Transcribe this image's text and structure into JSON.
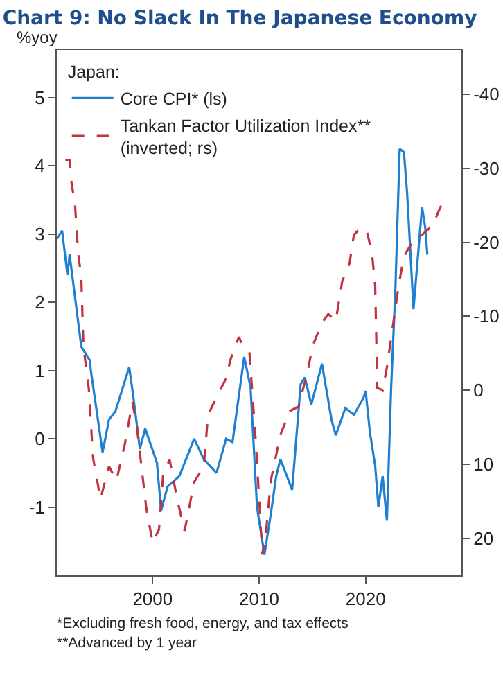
{
  "chart_data": {
    "type": "line",
    "title": "Chart 9: No Slack In The Japanese Economy",
    "ylabel": "%yoy",
    "legend_title": "Japan:",
    "annotations": [
      "*Excluding fresh food, energy, and tax effects",
      "**Advanced by 1 year"
    ],
    "xlim": [
      1991,
      2029
    ],
    "xticks": [
      2000,
      2010,
      2020
    ],
    "ylim": [
      -2.0,
      5.7
    ],
    "yticks": [
      -1,
      0,
      1,
      2,
      3,
      4,
      5
    ],
    "y2lim": [
      25,
      -46
    ],
    "y2ticks": [
      -40,
      -30,
      -20,
      -10,
      0,
      10,
      20
    ],
    "grid": false,
    "legend": "top left",
    "marker": "none",
    "series": [
      {
        "name": "Core CPI* (ls)",
        "color": "#1f7fd0",
        "line_style": "solid",
        "x": [
          1991.0,
          1991.5,
          1992.0,
          1992.2,
          1993.3,
          1994.1,
          1994.2,
          1995.3,
          1995.9,
          1996.5,
          1997.8,
          1998.2,
          1998.8,
          1999.3,
          2000.4,
          2000.8,
          2001.4,
          2002.5,
          2003.9,
          2004.8,
          2006.0,
          2006.9,
          2007.5,
          2008.6,
          2009.2,
          2009.8,
          2010.5,
          2011.1,
          2011.6,
          2012.0,
          2013.1,
          2013.9,
          2014.3,
          2014.9,
          2015.9,
          2016.8,
          2017.2,
          2018.1,
          2018.9,
          2019.8,
          2020.0,
          2020.4,
          2020.9,
          2021.2,
          2021.6,
          2022.0,
          2022.4,
          2022.8,
          2023.2,
          2023.6,
          2023.9,
          2024.5,
          2025.3,
          2025.6,
          2025.8
        ],
        "values": [
          2.93,
          3.05,
          2.4,
          2.7,
          1.35,
          1.15,
          1.0,
          -0.2,
          0.28,
          0.4,
          1.05,
          0.6,
          -0.15,
          0.15,
          -0.35,
          -1.05,
          -0.7,
          -0.55,
          0.0,
          -0.3,
          -0.5,
          0.0,
          -0.05,
          1.2,
          0.75,
          -1.0,
          -1.7,
          -1.1,
          -0.55,
          -0.3,
          -0.75,
          0.8,
          0.9,
          0.5,
          1.1,
          0.28,
          0.05,
          0.45,
          0.35,
          0.6,
          0.7,
          0.1,
          -0.4,
          -1.0,
          -0.55,
          -1.2,
          0.75,
          2.2,
          4.25,
          4.2,
          3.6,
          1.9,
          3.4,
          3.1,
          2.7
        ]
      },
      {
        "name": "Tankan Factor Utilization Index**\n(inverted; rs)",
        "color": "#c0333f",
        "line_style": "dashed",
        "axis": "y2",
        "x": [
          1991.8,
          1992.2,
          1992.4,
          1992.7,
          1993.0,
          1993.3,
          1993.5,
          1994.0,
          1994.4,
          1995.1,
          1995.9,
          1996.6,
          1997.4,
          1998.1,
          1998.5,
          1999.4,
          2000.0,
          2000.6,
          2001.0,
          2001.6,
          2002.3,
          2003.0,
          2003.9,
          2004.8,
          2005.2,
          2006.0,
          2006.9,
          2007.3,
          2008.1,
          2008.6,
          2009.1,
          2009.7,
          2010.3,
          2010.7,
          2011.1,
          2012.0,
          2012.9,
          2013.7,
          2014.6,
          2015.0,
          2015.9,
          2016.5,
          2017.2,
          2017.8,
          2018.5,
          2018.9,
          2019.5,
          2020.1,
          2020.6,
          2020.9,
          2021.1,
          2021.6,
          2022.0,
          2022.6,
          2023.1,
          2023.6,
          2024.5,
          2025.3,
          2026.3,
          2027.1
        ],
        "values": [
          -31.1,
          -31.1,
          -27.8,
          -25.3,
          -18.5,
          -15.3,
          -5.9,
          -0.3,
          9.1,
          14.7,
          10.3,
          12.2,
          7.2,
          1.6,
          4.7,
          15.9,
          20.6,
          18.8,
          11.1,
          9.4,
          14.7,
          19.0,
          12.4,
          10.3,
          3.4,
          0.9,
          -1.6,
          -4.1,
          -7.2,
          -5.6,
          -5.0,
          7.2,
          22.2,
          18.4,
          12.2,
          6.0,
          2.8,
          2.2,
          -2.8,
          -5.9,
          -9.1,
          -10.3,
          -9.4,
          -14.7,
          -17.2,
          -21.0,
          -21.9,
          -21.6,
          -18.5,
          -14.1,
          -0.3,
          0.0,
          -3.1,
          -9.1,
          -14.1,
          -18.1,
          -20.3,
          -21.0,
          -22.3,
          -25.0
        ]
      }
    ]
  }
}
